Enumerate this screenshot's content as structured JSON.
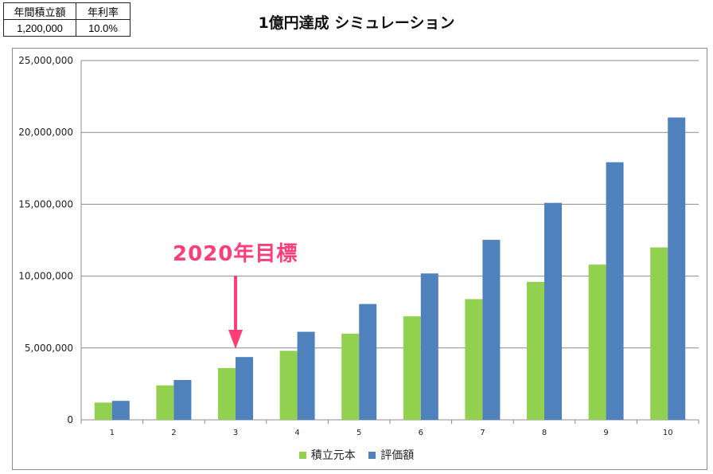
{
  "params": {
    "annual_label": "年間積立額",
    "rate_label": "年利率",
    "annual_value": "1,200,000",
    "rate_value": "10.0%"
  },
  "annotation": {
    "text": "2020年目標",
    "target_category": "3",
    "color": "#ff3d79"
  },
  "chart_data": {
    "type": "bar",
    "title": "1億円達成 シミュレーション",
    "xlabel": "",
    "ylabel": "",
    "categories": [
      "1",
      "2",
      "3",
      "4",
      "5",
      "6",
      "7",
      "8",
      "9",
      "10"
    ],
    "series": [
      {
        "name": "積立元本",
        "color": "#92d050",
        "values": [
          1200000,
          2400000,
          3600000,
          4800000,
          6000000,
          7200000,
          8400000,
          9600000,
          10800000,
          12000000
        ]
      },
      {
        "name": "評価額",
        "color": "#4f81bd",
        "values": [
          1320000,
          2772000,
          4369200,
          6126120,
          8058732,
          10184605,
          12523066,
          15095373,
          17924910,
          21037401
        ]
      }
    ],
    "ylim": [
      0,
      25000000
    ],
    "yticks": [
      0,
      5000000,
      10000000,
      15000000,
      20000000,
      25000000
    ],
    "ytick_labels": [
      "0",
      "5,000,000",
      "10,000,000",
      "15,000,000",
      "20,000,000",
      "25,000,000"
    ],
    "grid": true,
    "legend_position": "bottom"
  }
}
